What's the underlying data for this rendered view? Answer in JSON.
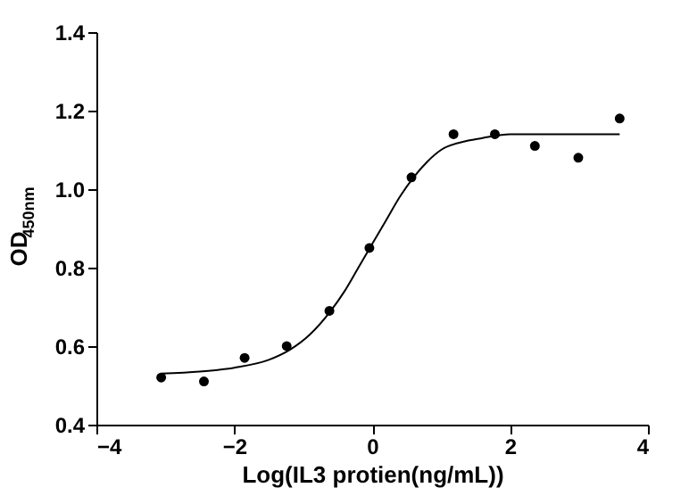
{
  "chart_data": {
    "type": "scatter",
    "xlabel": "Log(IL3 protien(ng/mL))",
    "ylabel": "OD$_{450nm}$",
    "xlim": [
      -4,
      4
    ],
    "xticks": [
      -4,
      -2,
      0,
      2,
      4
    ],
    "ylim": [
      0.4,
      1.4
    ],
    "yticks": [
      0.4,
      0.6,
      0.8,
      {
        "value": 1.0,
        "label": "1.0"
      },
      1.2,
      1.4
    ],
    "grid": false,
    "series": [
      {
        "marker": "circle",
        "color": "#000000",
        "x": [
          -3.06,
          -2.44,
          -1.85,
          -1.24,
          -0.62,
          -0.04,
          0.57,
          1.18,
          1.78,
          2.36,
          2.99,
          3.59
        ],
        "values": [
          0.52,
          0.51,
          0.57,
          0.6,
          0.69,
          0.85,
          1.03,
          1.14,
          1.14,
          1.11,
          1.08,
          1.18
        ]
      },
      {
        "type": "line",
        "line_style": "solid",
        "color": "#000000",
        "x": [
          -3.06,
          -2.5,
          -2.0,
          -1.5,
          -1.2,
          -0.9,
          -0.6,
          -0.4,
          -0.2,
          0.0,
          0.2,
          0.4,
          0.6,
          0.8,
          1.0,
          1.3,
          1.6,
          2.0,
          2.5,
          3.0,
          3.59
        ],
        "values": [
          0.53,
          0.535,
          0.545,
          0.565,
          0.59,
          0.63,
          0.69,
          0.74,
          0.8,
          0.86,
          0.92,
          0.98,
          1.03,
          1.07,
          1.1,
          1.12,
          1.13,
          1.14,
          1.14,
          1.14,
          1.14
        ]
      }
    ]
  }
}
